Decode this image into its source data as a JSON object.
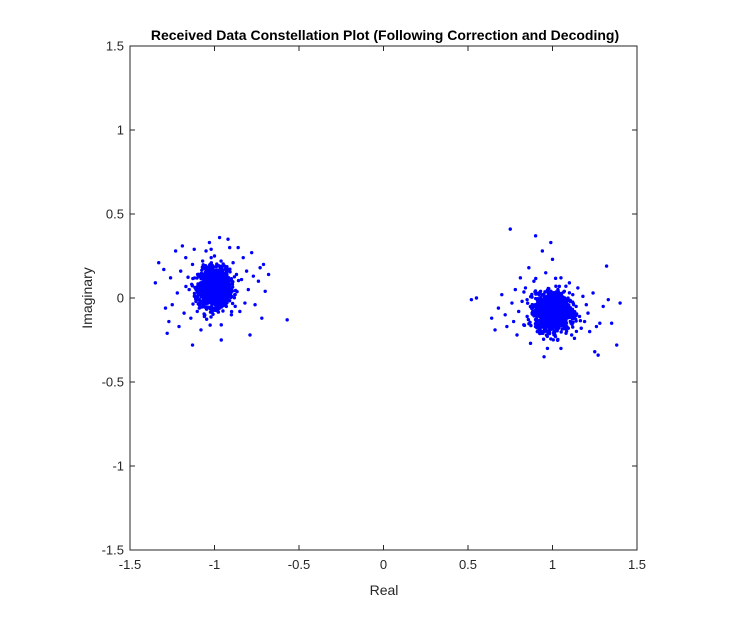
{
  "chart_data": {
    "type": "scatter",
    "title": "Received Data Constellation Plot (Following Correction and Decoding)",
    "xlabel": "Real",
    "ylabel": "Imaginary",
    "xlim": [
      -1.5,
      1.5
    ],
    "ylim": [
      -1.5,
      1.5
    ],
    "x_ticks": [
      -1.5,
      -1,
      -0.5,
      0,
      0.5,
      1,
      1.5
    ],
    "y_ticks": [
      -1.5,
      -1,
      -0.5,
      0,
      0.5,
      1,
      1.5
    ],
    "x_tick_labels": [
      "-1.5",
      "-1",
      "-0.5",
      "0",
      "0.5",
      "1",
      "1.5"
    ],
    "y_tick_labels": [
      "-1.5",
      "-1",
      "-0.5",
      "0",
      "0.5",
      "1",
      "1.5"
    ],
    "grid": false,
    "marker_color": "#0000ff",
    "series": [
      {
        "points": [
          [
            -1.35,
            0.09
          ],
          [
            -1.33,
            0.21
          ],
          [
            -1.3,
            0.17
          ],
          [
            -1.29,
            -0.06
          ],
          [
            -1.28,
            -0.21
          ],
          [
            -1.27,
            -0.14
          ],
          [
            -1.26,
            0.12
          ],
          [
            -1.25,
            -0.04
          ],
          [
            -1.23,
            0.28
          ],
          [
            -1.22,
            0.03
          ],
          [
            -1.21,
            -0.17
          ],
          [
            -1.2,
            0.16
          ],
          [
            -1.19,
            0.31
          ],
          [
            -1.18,
            -0.09
          ],
          [
            -1.17,
            0.24
          ],
          [
            -1.15,
            0.05
          ],
          [
            -1.14,
            -0.12
          ],
          [
            -1.13,
            0.2
          ],
          [
            -1.12,
            0.29
          ],
          [
            -1.11,
            -0.02
          ],
          [
            -1.1,
            0.14
          ],
          [
            -1.09,
            -0.06
          ],
          [
            -1.08,
            0.09
          ],
          [
            -1.07,
            0.22
          ],
          [
            -1.06,
            -0.11
          ],
          [
            -1.05,
            0.03
          ],
          [
            -1.04,
            0.17
          ],
          [
            -1.03,
            0.33
          ],
          [
            -1.02,
            -0.07
          ],
          [
            -1.01,
            0.1
          ],
          [
            -1.0,
            0.25
          ],
          [
            -0.99,
            -0.01
          ],
          [
            -0.98,
            0.12
          ],
          [
            -0.97,
            0.36
          ],
          [
            -0.96,
            -0.16
          ],
          [
            -0.95,
            0.06
          ],
          [
            -0.94,
            0.19
          ],
          [
            -0.93,
            -0.05
          ],
          [
            -0.92,
            0.35
          ],
          [
            -0.91,
            0.08
          ],
          [
            -0.9,
            -0.1
          ],
          [
            -0.89,
            0.21
          ],
          [
            -0.88,
            0.02
          ],
          [
            -0.87,
            0.14
          ],
          [
            -0.86,
            0.3
          ],
          [
            -0.85,
            -0.08
          ],
          [
            -0.84,
            0.11
          ],
          [
            -0.83,
            0.24
          ],
          [
            -0.82,
            -0.03
          ],
          [
            -0.81,
            0.16
          ],
          [
            -0.8,
            0.05
          ],
          [
            -0.79,
            -0.22
          ],
          [
            -0.78,
            0.27
          ],
          [
            -0.77,
            0.13
          ],
          [
            -0.76,
            -0.04
          ],
          [
            -0.74,
            0.1
          ],
          [
            -0.73,
            0.18
          ],
          [
            -0.72,
            -0.12
          ],
          [
            -0.71,
            0.2
          ],
          [
            -0.7,
            0.04
          ],
          [
            -0.68,
            0.14
          ],
          [
            -0.57,
            -0.13
          ],
          [
            -1.13,
            -0.28
          ],
          [
            -1.08,
            -0.19
          ],
          [
            -1.02,
            0.29
          ],
          [
            -0.96,
            -0.25
          ],
          [
            -1.05,
            0.28
          ],
          [
            -0.91,
            0.3
          ]
        ]
      },
      {
        "points": [
          [
            0.52,
            -0.01
          ],
          [
            0.55,
            -0.0
          ],
          [
            0.64,
            -0.12
          ],
          [
            0.66,
            -0.19
          ],
          [
            0.68,
            -0.06
          ],
          [
            0.7,
            0.02
          ],
          [
            0.72,
            -0.1
          ],
          [
            0.73,
            -0.17
          ],
          [
            0.75,
            0.41
          ],
          [
            0.76,
            -0.03
          ],
          [
            0.77,
            -0.14
          ],
          [
            0.78,
            0.05
          ],
          [
            0.79,
            -0.22
          ],
          [
            0.8,
            -0.08
          ],
          [
            0.81,
            0.12
          ],
          [
            0.82,
            -0.02
          ],
          [
            0.83,
            -0.16
          ],
          [
            0.84,
            0.06
          ],
          [
            0.85,
            -0.11
          ],
          [
            0.86,
            0.18
          ],
          [
            0.87,
            -0.27
          ],
          [
            0.88,
            -0.04
          ],
          [
            0.89,
            0.1
          ],
          [
            0.9,
            0.37
          ],
          [
            0.91,
            -0.2
          ],
          [
            0.92,
            0.03
          ],
          [
            0.93,
            -0.13
          ],
          [
            0.94,
            0.28
          ],
          [
            0.95,
            -0.06
          ],
          [
            0.96,
            0.15
          ],
          [
            0.97,
            -0.3
          ],
          [
            0.98,
            0.0
          ],
          [
            0.99,
            -0.09
          ],
          [
            1.0,
            0.23
          ],
          [
            1.01,
            -0.17
          ],
          [
            1.02,
            0.07
          ],
          [
            1.03,
            -0.25
          ],
          [
            1.04,
            -0.03
          ],
          [
            1.05,
            0.12
          ],
          [
            1.06,
            -0.13
          ],
          [
            1.07,
            0.04
          ],
          [
            1.08,
            -0.21
          ],
          [
            1.09,
            -0.07
          ],
          [
            1.1,
            0.09
          ],
          [
            1.11,
            -0.15
          ],
          [
            1.12,
            0.02
          ],
          [
            1.13,
            -0.24
          ],
          [
            1.14,
            -0.05
          ],
          [
            1.15,
            0.06
          ],
          [
            1.16,
            -0.11
          ],
          [
            1.17,
            -0.18
          ],
          [
            1.18,
            0.01
          ],
          [
            1.19,
            -0.14
          ],
          [
            1.2,
            -0.04
          ],
          [
            1.21,
            -0.09
          ],
          [
            1.22,
            -0.2
          ],
          [
            1.24,
            0.03
          ],
          [
            1.25,
            -0.32
          ],
          [
            1.26,
            -0.17
          ],
          [
            1.27,
            -0.34
          ],
          [
            1.28,
            -0.15
          ],
          [
            1.3,
            -0.05
          ],
          [
            1.32,
            0.19
          ],
          [
            1.33,
            -0.01
          ],
          [
            1.35,
            -0.15
          ],
          [
            1.38,
            -0.28
          ],
          [
            1.4,
            -0.03
          ],
          [
            0.95,
            -0.35
          ],
          [
            1.05,
            -0.3
          ],
          [
            0.99,
            0.33
          ]
        ],
        "clusters": []
      }
    ],
    "clusters": [
      {
        "center": [
          -1.0,
          0.06
        ],
        "count": 1400,
        "spread": [
          0.045,
          0.055
        ]
      },
      {
        "center": [
          1.0,
          -0.08
        ],
        "count": 1400,
        "spread": [
          0.05,
          0.055
        ]
      }
    ]
  }
}
